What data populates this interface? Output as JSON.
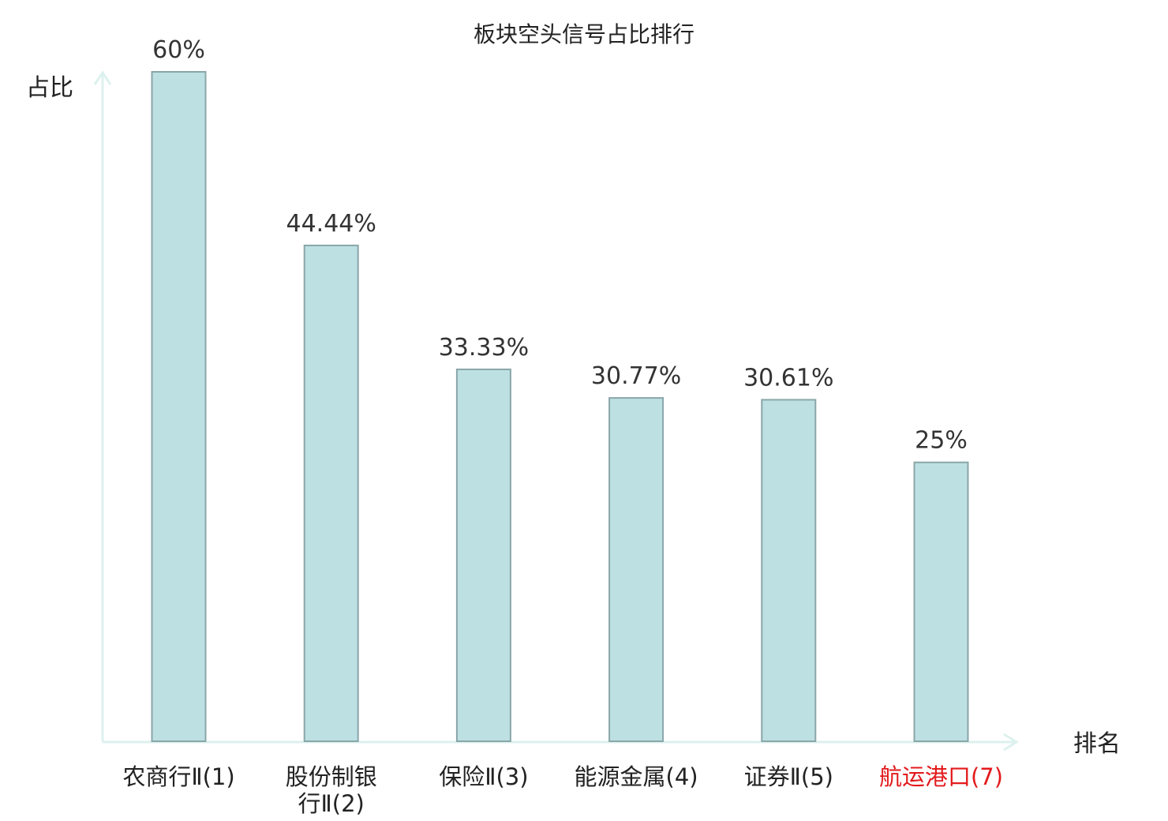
{
  "chart_data": {
    "type": "bar",
    "title": "板块空头信号占比排行",
    "ylabel": "占比",
    "xlabel": "排名",
    "ylim": [
      0,
      60
    ],
    "grid": false,
    "categories": [
      [
        "农商行Ⅱ(1)"
      ],
      [
        "股份制银",
        "行Ⅱ(2)"
      ],
      [
        "保险Ⅱ(3)"
      ],
      [
        "能源金属(4)"
      ],
      [
        "证券Ⅱ(5)"
      ],
      [
        "航运港口(7)"
      ]
    ],
    "values": [
      60,
      44.44,
      33.33,
      30.77,
      30.61,
      25
    ],
    "value_labels": [
      "60%",
      "44.44%",
      "33.33%",
      "30.77%",
      "30.61%",
      "25%"
    ],
    "highlight_index": 5,
    "colors": {
      "bar_fill": "#bde0e3",
      "bar_stroke": "#8aa6a9",
      "axis": "#ddf1ee",
      "label_default": "#222222",
      "label_highlight": "#e31a1c"
    }
  }
}
